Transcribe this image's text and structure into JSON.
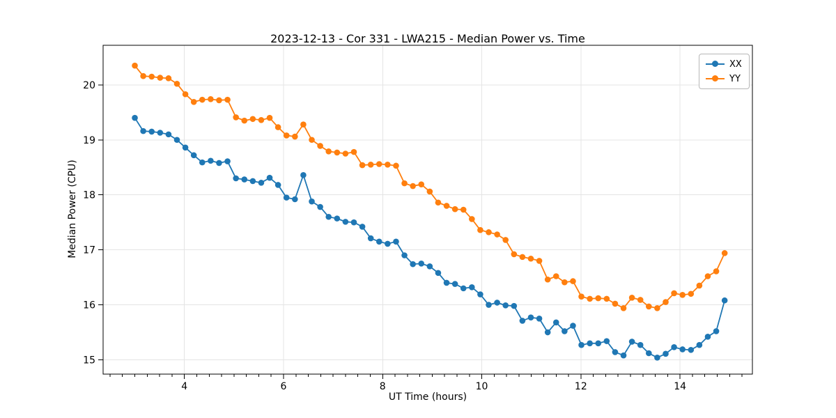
{
  "figure": {
    "title": "2023-12-13 - Cor 331 - LWA215 - Median Power vs. Time",
    "xlabel": "UT Time (hours)",
    "ylabel": "Median Power (CPU)"
  },
  "chart_data": {
    "type": "line",
    "title": "2023-12-13 - Cor 331 - LWA215 - Median Power vs. Time",
    "xlabel": "UT Time (hours)",
    "ylabel": "Median Power (CPU)",
    "xlim": [
      2.36,
      15.46
    ],
    "ylim": [
      14.74,
      20.72
    ],
    "xticks": [
      4,
      6,
      8,
      10,
      12,
      14
    ],
    "yticks": [
      15,
      16,
      17,
      18,
      19,
      20
    ],
    "minor_xtick_step": 0.25,
    "grid": true,
    "legend_position": "upper right",
    "marker": "circle",
    "x": [
      3.0,
      3.17,
      3.34,
      3.51,
      3.68,
      3.85,
      4.02,
      4.19,
      4.36,
      4.53,
      4.7,
      4.87,
      5.04,
      5.21,
      5.38,
      5.55,
      5.72,
      5.89,
      6.06,
      6.23,
      6.4,
      6.57,
      6.74,
      6.91,
      7.08,
      7.25,
      7.42,
      7.59,
      7.76,
      7.93,
      8.1,
      8.27,
      8.44,
      8.61,
      8.78,
      8.95,
      9.12,
      9.29,
      9.46,
      9.63,
      9.8,
      9.97,
      10.14,
      10.31,
      10.48,
      10.65,
      10.82,
      10.99,
      11.16,
      11.33,
      11.5,
      11.67,
      11.84,
      12.01,
      12.18,
      12.35,
      12.52,
      12.69,
      12.86,
      13.03,
      13.2,
      13.37,
      13.54,
      13.71,
      13.88,
      14.05,
      14.22,
      14.39,
      14.56,
      14.73,
      14.9
    ],
    "series": [
      {
        "name": "XX",
        "color": "#1f77b4",
        "values": [
          19.4,
          19.16,
          19.15,
          19.13,
          19.1,
          19.0,
          18.86,
          18.72,
          18.59,
          18.62,
          18.58,
          18.61,
          18.3,
          18.28,
          18.25,
          18.22,
          18.31,
          18.18,
          17.95,
          17.92,
          18.36,
          17.88,
          17.78,
          17.6,
          17.57,
          17.51,
          17.5,
          17.42,
          17.21,
          17.15,
          17.11,
          17.15,
          16.9,
          16.74,
          16.75,
          16.7,
          16.58,
          16.4,
          16.38,
          16.3,
          16.32,
          16.19,
          16.0,
          16.04,
          15.99,
          15.98,
          15.71,
          15.77,
          15.75,
          15.5,
          15.68,
          15.52,
          15.62,
          15.27,
          15.3,
          15.3,
          15.34,
          15.14,
          15.08,
          15.33,
          15.27,
          15.12,
          15.04,
          15.11,
          15.23,
          15.19,
          15.18,
          15.27,
          15.42,
          15.52,
          16.08
        ]
      },
      {
        "name": "YY",
        "color": "#ff7f0e",
        "values": [
          20.35,
          20.16,
          20.15,
          20.13,
          20.12,
          20.02,
          19.83,
          19.69,
          19.73,
          19.74,
          19.72,
          19.73,
          19.41,
          19.35,
          19.38,
          19.36,
          19.4,
          19.23,
          19.08,
          19.06,
          19.28,
          19.0,
          18.89,
          18.79,
          18.77,
          18.75,
          18.78,
          18.54,
          18.55,
          18.56,
          18.55,
          18.53,
          18.21,
          18.16,
          18.19,
          18.06,
          17.86,
          17.8,
          17.74,
          17.73,
          17.56,
          17.36,
          17.32,
          17.28,
          17.18,
          16.92,
          16.87,
          16.84,
          16.8,
          16.46,
          16.52,
          16.41,
          16.43,
          16.15,
          16.11,
          16.12,
          16.11,
          16.02,
          15.94,
          16.13,
          16.09,
          15.97,
          15.94,
          16.05,
          16.21,
          16.18,
          16.2,
          16.35,
          16.52,
          16.61,
          16.94
        ]
      }
    ]
  },
  "style": {
    "background": "#ffffff",
    "spine_color": "#000000",
    "grid_color": "#e4e4e4",
    "tick_color": "#000000",
    "text_color": "#000000",
    "legend_border": "#b7b7b7"
  }
}
